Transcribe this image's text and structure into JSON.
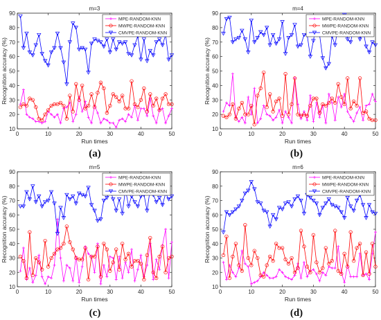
{
  "chart_data": [
    {
      "type": "line",
      "panel_label": "(a)",
      "title": "m=3",
      "xlabel": "Run times",
      "ylabel": "Recognition accuracy (%)",
      "xlim": [
        0,
        50
      ],
      "ylim": [
        10,
        90
      ],
      "xticks": [
        "0",
        "10",
        "20",
        "30",
        "40",
        "50"
      ],
      "yticks": [
        "10",
        "20",
        "30",
        "40",
        "50",
        "60",
        "70",
        "80",
        "90"
      ],
      "legend_position": "top-right",
      "x": [
        1,
        2,
        3,
        4,
        5,
        6,
        7,
        8,
        9,
        10,
        11,
        12,
        13,
        14,
        15,
        16,
        17,
        18,
        19,
        20,
        21,
        22,
        23,
        24,
        25,
        26,
        27,
        28,
        29,
        30,
        31,
        32,
        33,
        34,
        35,
        36,
        37,
        38,
        39,
        40,
        41,
        42,
        43,
        44,
        45,
        46,
        47,
        48,
        49,
        50
      ],
      "series": [
        {
          "name": "MPE-RANDOM-KNN",
          "color": "#ff00ff",
          "marker": "plus",
          "values": [
            27,
            37,
            20,
            18,
            17,
            15,
            15,
            14,
            15,
            22,
            20,
            18,
            20,
            14,
            24,
            25,
            28,
            15,
            20,
            32,
            22,
            29,
            18,
            14,
            26,
            21,
            14,
            17,
            16,
            14,
            14,
            11,
            16,
            17,
            15,
            20,
            18,
            26,
            16,
            24,
            24,
            19,
            31,
            19,
            14,
            23,
            24,
            14,
            19,
            24
          ]
        },
        {
          "name": "MWPE-RANDOM-KNN",
          "color": "#ff0000",
          "marker": "circle",
          "values": [
            25,
            27,
            26,
            31,
            30,
            25,
            17,
            16,
            20,
            23,
            26,
            27,
            27,
            28,
            26,
            17,
            33,
            22,
            41,
            30,
            40,
            24,
            26,
            34,
            25,
            35,
            42,
            38,
            21,
            26,
            34,
            32,
            29,
            33,
            24,
            24,
            43,
            27,
            25,
            30,
            38,
            22,
            34,
            26,
            31,
            23,
            31,
            34,
            27,
            27
          ]
        },
        {
          "name": "CMVPE-RANDOM-KNN",
          "color": "#0000ff",
          "marker": "triangle-down",
          "values": [
            88,
            66,
            76,
            63,
            61,
            68,
            75,
            62,
            57,
            54,
            63,
            66,
            76,
            66,
            56,
            41,
            70,
            83,
            80,
            65,
            66,
            65,
            49,
            69,
            72,
            71,
            70,
            67,
            72,
            63,
            72,
            65,
            70,
            69,
            70,
            62,
            61,
            68,
            74,
            58,
            72,
            57,
            64,
            61,
            70,
            72,
            68,
            75,
            58,
            61
          ]
        }
      ]
    },
    {
      "type": "line",
      "panel_label": "(b)",
      "title": "m=4",
      "xlabel": "Run times",
      "ylabel": "Recognition accuracy (%)",
      "xlim": [
        0,
        50
      ],
      "ylim": [
        10,
        90
      ],
      "xticks": [
        "0",
        "10",
        "20",
        "30",
        "40",
        "50"
      ],
      "yticks": [
        "10",
        "20",
        "30",
        "40",
        "50",
        "60",
        "70",
        "80",
        "90"
      ],
      "legend_position": "top-right",
      "x": [
        1,
        2,
        3,
        4,
        5,
        6,
        7,
        8,
        9,
        10,
        11,
        12,
        13,
        14,
        15,
        16,
        17,
        18,
        19,
        20,
        21,
        22,
        23,
        24,
        25,
        26,
        27,
        28,
        29,
        30,
        31,
        32,
        33,
        34,
        35,
        36,
        37,
        38,
        39,
        40,
        41,
        42,
        43,
        44,
        45,
        46,
        47,
        48,
        49,
        50
      ],
      "series": [
        {
          "name": "MPE-RANDOM-KNN",
          "color": "#ff00ff",
          "marker": "plus",
          "values": [
            22,
            28,
            26,
            48,
            18,
            15,
            18,
            14,
            32,
            20,
            38,
            14,
            17,
            26,
            20,
            19,
            16,
            18,
            23,
            14,
            22,
            18,
            14,
            45,
            27,
            17,
            22,
            16,
            33,
            15,
            28,
            18,
            26,
            14,
            34,
            28,
            16,
            32,
            25,
            34,
            22,
            18,
            15,
            21,
            25,
            16,
            26,
            27,
            34,
            29
          ]
        },
        {
          "name": "MWPE-RANDOM-KNN",
          "color": "#ff0000",
          "marker": "circle",
          "values": [
            19,
            18,
            20,
            27,
            17,
            24,
            28,
            20,
            20,
            26,
            13,
            33,
            38,
            49,
            25,
            34,
            22,
            29,
            31,
            19,
            48,
            20,
            27,
            45,
            20,
            19,
            20,
            19,
            26,
            31,
            31,
            21,
            27,
            26,
            28,
            31,
            28,
            41,
            32,
            27,
            45,
            24,
            29,
            26,
            45,
            21,
            22,
            17,
            16,
            16
          ]
        },
        {
          "name": "CMVPE-RANDOM-KNN",
          "color": "#0000ff",
          "marker": "triangle-down",
          "values": [
            76,
            86,
            87,
            70,
            72,
            73,
            78,
            72,
            63,
            85,
            70,
            73,
            77,
            75,
            80,
            68,
            75,
            69,
            72,
            84,
            62,
            73,
            75,
            82,
            67,
            68,
            75,
            75,
            60,
            71,
            83,
            75,
            59,
            52,
            55,
            74,
            68,
            82,
            85,
            89,
            72,
            70,
            80,
            84,
            72,
            78,
            67,
            63,
            70,
            68
          ]
        }
      ]
    },
    {
      "type": "line",
      "panel_label": "(c)",
      "title": "m=5",
      "xlabel": "Run times",
      "ylabel": "Recognition accuracy (%)",
      "xlim": [
        0,
        50
      ],
      "ylim": [
        10,
        90
      ],
      "xticks": [
        "0",
        "10",
        "20",
        "30",
        "40",
        "50"
      ],
      "yticks": [
        "10",
        "20",
        "30",
        "40",
        "50",
        "60",
        "70",
        "80",
        "90"
      ],
      "legend_position": "top-right",
      "x": [
        1,
        2,
        3,
        4,
        5,
        6,
        7,
        8,
        9,
        10,
        11,
        12,
        13,
        14,
        15,
        16,
        17,
        18,
        19,
        20,
        21,
        22,
        23,
        24,
        25,
        26,
        27,
        28,
        29,
        30,
        31,
        32,
        33,
        34,
        35,
        36,
        37,
        38,
        39,
        40,
        41,
        42,
        43,
        44,
        45,
        46,
        47,
        48,
        49,
        50
      ],
      "series": [
        {
          "name": "MPE-RANDOM-KNN",
          "color": "#ff00ff",
          "marker": "plus",
          "values": [
            21,
            37,
            15,
            23,
            13,
            18,
            32,
            17,
            12,
            17,
            16,
            25,
            57,
            30,
            14,
            25,
            23,
            14,
            31,
            13,
            24,
            38,
            33,
            31,
            20,
            40,
            12,
            25,
            17,
            31,
            30,
            15,
            31,
            16,
            27,
            20,
            36,
            14,
            22,
            32,
            17,
            25,
            40,
            15,
            29,
            22,
            39,
            50,
            16,
            41
          ]
        },
        {
          "name": "MWPE-RANDOM-KNN",
          "color": "#ff0000",
          "marker": "circle",
          "values": [
            31,
            28,
            16,
            48,
            18,
            30,
            27,
            22,
            42,
            24,
            30,
            33,
            36,
            37,
            40,
            52,
            41,
            36,
            30,
            29,
            29,
            37,
            15,
            31,
            31,
            38,
            17,
            40,
            36,
            21,
            27,
            36,
            22,
            40,
            29,
            33,
            24,
            28,
            28,
            26,
            15,
            32,
            44,
            20,
            16,
            31,
            38,
            20,
            30,
            31
          ]
        },
        {
          "name": "CMVPE-RANDOM-KNN",
          "color": "#0000ff",
          "marker": "triangle-down",
          "values": [
            66,
            66,
            76,
            71,
            80,
            69,
            73,
            66,
            69,
            70,
            76,
            68,
            47,
            65,
            58,
            74,
            71,
            73,
            68,
            75,
            74,
            73,
            79,
            67,
            63,
            56,
            57,
            70,
            72,
            78,
            71,
            63,
            71,
            61,
            78,
            66,
            73,
            69,
            66,
            73,
            74,
            63,
            78,
            74,
            69,
            72,
            67,
            75,
            71,
            73
          ]
        }
      ]
    },
    {
      "type": "line",
      "panel_label": "(d)",
      "title": "m=6",
      "xlabel": "Run times",
      "ylabel": "Recognition accuracy (%)",
      "xlim": [
        0,
        50
      ],
      "ylim": [
        10,
        90
      ],
      "xticks": [
        "0",
        "10",
        "20",
        "30",
        "40",
        "50"
      ],
      "yticks": [
        "10",
        "20",
        "30",
        "40",
        "50",
        "60",
        "70",
        "80",
        "90"
      ],
      "legend_position": "top-right",
      "x": [
        1,
        2,
        3,
        4,
        5,
        6,
        7,
        8,
        9,
        10,
        11,
        12,
        13,
        14,
        15,
        16,
        17,
        18,
        19,
        20,
        21,
        22,
        23,
        24,
        25,
        26,
        27,
        28,
        29,
        30,
        31,
        32,
        33,
        34,
        35,
        36,
        37,
        38,
        39,
        40,
        41,
        42,
        43,
        44,
        45,
        46,
        47,
        48,
        49,
        50
      ],
      "series": [
        {
          "name": "MPE-RANDOM-KNN",
          "color": "#ff00ff",
          "marker": "plus",
          "values": [
            27,
            15,
            25,
            20,
            17,
            23,
            35,
            26,
            24,
            12,
            13,
            14,
            17,
            20,
            18,
            16,
            16,
            17,
            22,
            20,
            17,
            16,
            15,
            18,
            26,
            16,
            27,
            17,
            21,
            22,
            19,
            14,
            20,
            18,
            24,
            23,
            23,
            38,
            20,
            13,
            25,
            17,
            17,
            17,
            33,
            18,
            19,
            15,
            33,
            48
          ]
        },
        {
          "name": "MWPE-RANDOM-KNN",
          "color": "#ff0000",
          "marker": "circle",
          "values": [
            32,
            45,
            16,
            31,
            40,
            25,
            21,
            53,
            30,
            25,
            35,
            30,
            18,
            17,
            25,
            31,
            28,
            40,
            37,
            37,
            29,
            26,
            30,
            20,
            23,
            49,
            38,
            24,
            20,
            46,
            27,
            20,
            23,
            37,
            26,
            28,
            49,
            21,
            19,
            33,
            24,
            48,
            28,
            37,
            40,
            18,
            34,
            19,
            40,
            24
          ]
        },
        {
          "name": "CMVPE-RANDOM-KNN",
          "color": "#0000ff",
          "marker": "triangle-down",
          "values": [
            48,
            62,
            60,
            62,
            64,
            66,
            70,
            75,
            77,
            83,
            78,
            69,
            68,
            63,
            62,
            52,
            60,
            57,
            65,
            64,
            68,
            69,
            66,
            71,
            73,
            70,
            61,
            74,
            72,
            70,
            68,
            60,
            65,
            68,
            71,
            67,
            66,
            65,
            62,
            58,
            72,
            66,
            63,
            70,
            74,
            67,
            58,
            67,
            62,
            61
          ]
        }
      ]
    }
  ]
}
